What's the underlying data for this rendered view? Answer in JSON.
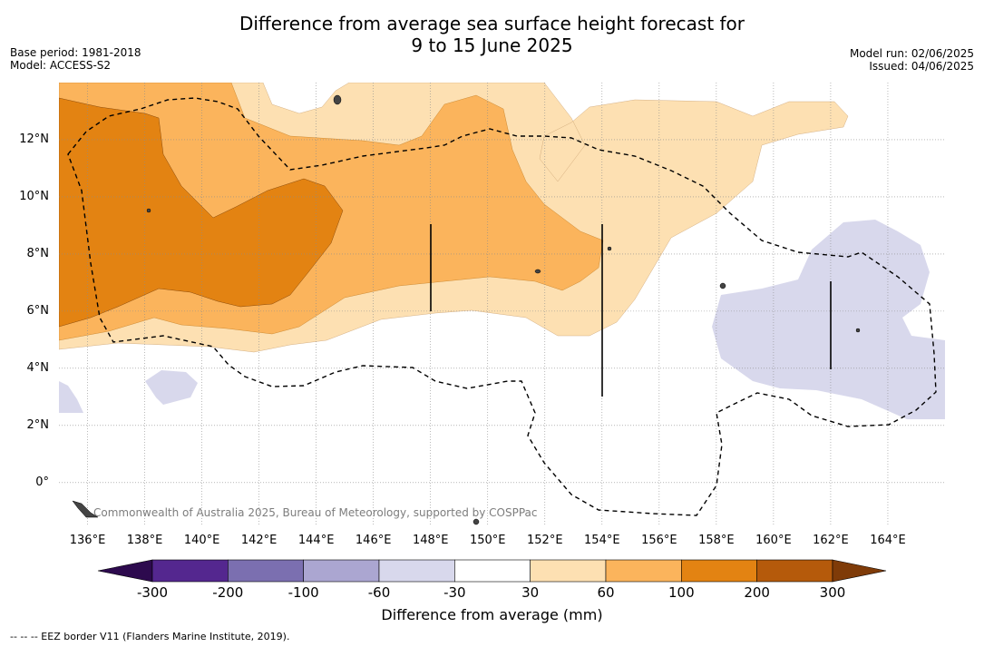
{
  "title_line1": "Difference from average sea surface height forecast for",
  "title_line2": "9 to 15 June 2025",
  "base_period": "Base period: 1981-2018",
  "model": "Model: ACCESS-S2",
  "model_run": "Model run: 02/06/2025",
  "issued": "Issued: 04/06/2025",
  "copyright": "Commonwealth of Australia 2025, Bureau of Meteorology, supported by COSPPac",
  "footnote": "-- -- -- EEZ border V11 (Flanders Marine Institute, 2019).",
  "colorbar": {
    "label": "Difference from average (mm)",
    "ticks": [
      "-300",
      "-200",
      "-100",
      "-60",
      "-30",
      "30",
      "60",
      "100",
      "200",
      "300"
    ],
    "colors": [
      "#2d0a4e",
      "#54278f",
      "#7b6fb0",
      "#aba6d1",
      "#d8d8ec",
      "#ffffff",
      "#fde0b2",
      "#fbb45c",
      "#e38312",
      "#b55a0b",
      "#7f3b08"
    ]
  },
  "axes": {
    "x_ticks": [
      "136°E",
      "138°E",
      "140°E",
      "142°E",
      "144°E",
      "146°E",
      "148°E",
      "150°E",
      "152°E",
      "154°E",
      "156°E",
      "158°E",
      "160°E",
      "162°E",
      "164°E"
    ],
    "x_values": [
      136,
      138,
      140,
      142,
      144,
      146,
      148,
      150,
      152,
      154,
      156,
      158,
      160,
      162,
      164
    ],
    "y_ticks": [
      "12°N",
      "10°N",
      "8°N",
      "6°N",
      "4°N",
      "2°N",
      "0°"
    ],
    "y_values": [
      12,
      10,
      8,
      6,
      4,
      2,
      0
    ],
    "lon_range": [
      135,
      166
    ],
    "lat_range": [
      -1.5,
      14
    ]
  }
}
